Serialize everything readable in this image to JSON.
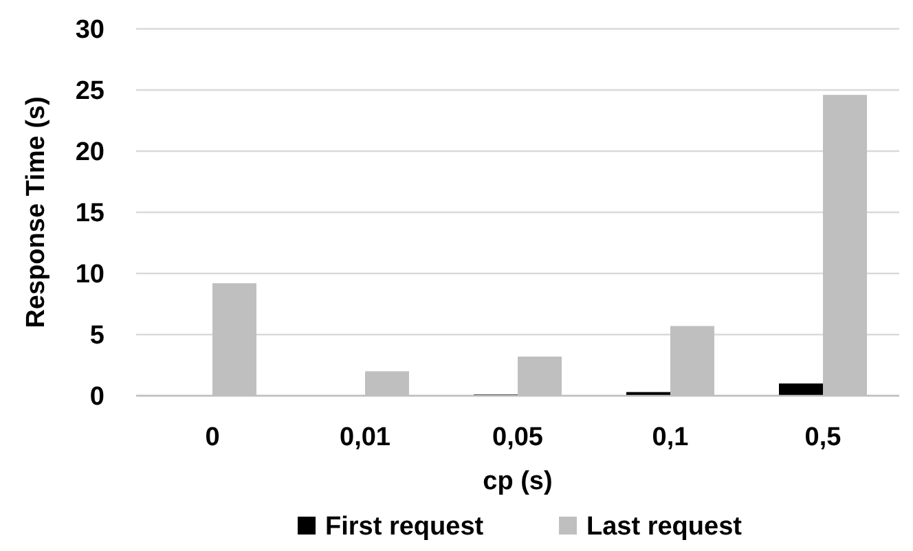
{
  "chart_data": {
    "type": "bar",
    "xlabel": "cp (s)",
    "ylabel": "Response Time (s)",
    "categories": [
      "0",
      "0,01",
      "0,05",
      "0,1",
      "0,5"
    ],
    "series": [
      {
        "name": "First request",
        "color": "#000000",
        "values": [
          0,
          0,
          0.1,
          0.3,
          1.0
        ]
      },
      {
        "name": "Last request",
        "color": "#bfbfbf",
        "values": [
          9.2,
          2.0,
          3.2,
          5.7,
          24.6
        ]
      }
    ],
    "ylim": [
      0,
      30
    ],
    "yticks": [
      0,
      5,
      10,
      15,
      20,
      25,
      30
    ],
    "grid": "y",
    "legend": "bottom"
  }
}
